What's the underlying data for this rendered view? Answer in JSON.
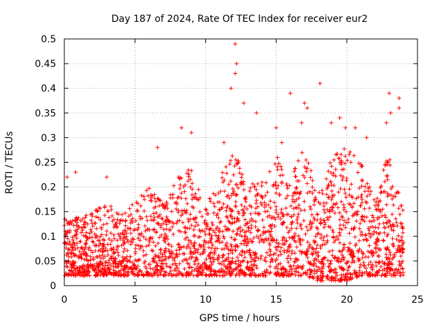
{
  "chart_data": {
    "type": "scatter",
    "title": "Day 187 of 2024, Rate Of TEC Index for receiver eur2",
    "xlabel": "GPS time / hours",
    "ylabel": "ROTI / TECUs",
    "xlim": [
      0,
      25
    ],
    "ylim": [
      0,
      0.5
    ],
    "xticks": [
      "0",
      "5",
      "10",
      "15",
      "20",
      "25"
    ],
    "yticks": [
      "0",
      "0.05",
      "0.1",
      "0.15",
      "0.2",
      "0.25",
      "0.3",
      "0.35",
      "0.4",
      "0.45",
      "0.5"
    ],
    "grid": true,
    "marker": "plus",
    "color": "#ff0000",
    "x_range_data": [
      0,
      24
    ],
    "notable_points": [
      {
        "x": 0.2,
        "y": 0.22
      },
      {
        "x": 0.8,
        "y": 0.23
      },
      {
        "x": 3.0,
        "y": 0.22
      },
      {
        "x": 6.6,
        "y": 0.28
      },
      {
        "x": 8.3,
        "y": 0.32
      },
      {
        "x": 9.0,
        "y": 0.31
      },
      {
        "x": 11.3,
        "y": 0.29
      },
      {
        "x": 11.8,
        "y": 0.4
      },
      {
        "x": 12.1,
        "y": 0.49
      },
      {
        "x": 12.2,
        "y": 0.45
      },
      {
        "x": 12.1,
        "y": 0.43
      },
      {
        "x": 12.7,
        "y": 0.37
      },
      {
        "x": 13.6,
        "y": 0.35
      },
      {
        "x": 15.0,
        "y": 0.32
      },
      {
        "x": 15.4,
        "y": 0.29
      },
      {
        "x": 16.0,
        "y": 0.39
      },
      {
        "x": 16.8,
        "y": 0.33
      },
      {
        "x": 17.0,
        "y": 0.37
      },
      {
        "x": 17.2,
        "y": 0.36
      },
      {
        "x": 18.1,
        "y": 0.41
      },
      {
        "x": 18.9,
        "y": 0.33
      },
      {
        "x": 19.5,
        "y": 0.34
      },
      {
        "x": 19.9,
        "y": 0.32
      },
      {
        "x": 20.6,
        "y": 0.32
      },
      {
        "x": 21.4,
        "y": 0.3
      },
      {
        "x": 22.8,
        "y": 0.33
      },
      {
        "x": 23.0,
        "y": 0.39
      },
      {
        "x": 23.1,
        "y": 0.35
      },
      {
        "x": 23.7,
        "y": 0.38
      },
      {
        "x": 23.7,
        "y": 0.36
      }
    ],
    "series": [
      {
        "values_summary": "dense band of ROTI values mostly between 0.02 and 0.15 TECUs across the day, with elevated activity 11–13 h and 15–23 h",
        "hourly_envelope": [
          {
            "x": 0,
            "low": 0.02,
            "high": 0.15
          },
          {
            "x": 1,
            "low": 0.02,
            "high": 0.14
          },
          {
            "x": 2,
            "low": 0.02,
            "high": 0.15
          },
          {
            "x": 3,
            "low": 0.02,
            "high": 0.17
          },
          {
            "x": 4,
            "low": 0.02,
            "high": 0.15
          },
          {
            "x": 5,
            "low": 0.02,
            "high": 0.17
          },
          {
            "x": 6,
            "low": 0.02,
            "high": 0.2
          },
          {
            "x": 7,
            "low": 0.02,
            "high": 0.17
          },
          {
            "x": 8,
            "low": 0.02,
            "high": 0.22
          },
          {
            "x": 9,
            "low": 0.02,
            "high": 0.24
          },
          {
            "x": 10,
            "low": 0.02,
            "high": 0.17
          },
          {
            "x": 11,
            "low": 0.02,
            "high": 0.22
          },
          {
            "x": 12,
            "low": 0.02,
            "high": 0.28
          },
          {
            "x": 13,
            "low": 0.02,
            "high": 0.2
          },
          {
            "x": 14,
            "low": 0.02,
            "high": 0.22
          },
          {
            "x": 15,
            "low": 0.02,
            "high": 0.27
          },
          {
            "x": 16,
            "low": 0.02,
            "high": 0.22
          },
          {
            "x": 17,
            "low": 0.02,
            "high": 0.28
          },
          {
            "x": 18,
            "low": 0.01,
            "high": 0.2
          },
          {
            "x": 19,
            "low": 0.01,
            "high": 0.27
          },
          {
            "x": 20,
            "low": 0.01,
            "high": 0.28
          },
          {
            "x": 21,
            "low": 0.02,
            "high": 0.25
          },
          {
            "x": 22,
            "low": 0.02,
            "high": 0.17
          },
          {
            "x": 23,
            "low": 0.02,
            "high": 0.28
          },
          {
            "x": 24,
            "low": 0.02,
            "high": 0.16
          }
        ]
      }
    ]
  }
}
